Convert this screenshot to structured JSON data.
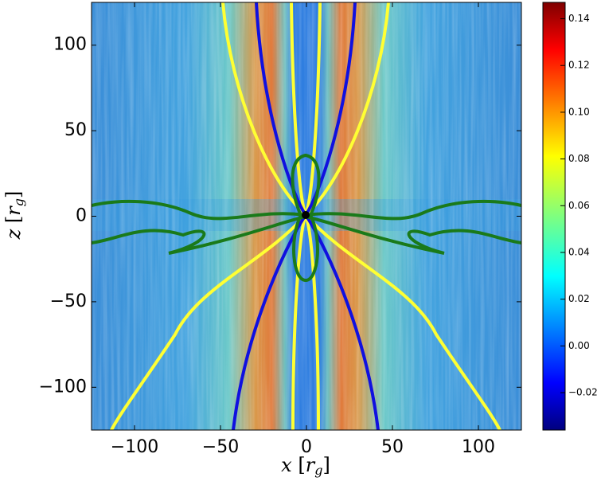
{
  "chart_data": {
    "type": "image",
    "xlabel": {
      "var": "x",
      "unit": "r",
      "sub": "g"
    },
    "ylabel": {
      "var": "z",
      "unit": "r",
      "sub": "g"
    },
    "xlim": [
      -125,
      125
    ],
    "ylim": [
      -125,
      125
    ],
    "xticks": [
      {
        "value": -100,
        "label": "−100"
      },
      {
        "value": -50,
        "label": "−50"
      },
      0,
      50,
      100
    ],
    "yticks": [
      {
        "value": -100,
        "label": "−100"
      },
      {
        "value": -50,
        "label": "−50"
      },
      0,
      50,
      100
    ],
    "colorbar": {
      "lim": [
        -0.036,
        0.147
      ],
      "ticks": [
        {
          "value": -0.02,
          "label": "−0.02"
        },
        {
          "value": 0,
          "label": "0.00"
        },
        {
          "value": 0.02,
          "label": "0.02"
        },
        {
          "value": 0.04,
          "label": "0.04"
        },
        {
          "value": 0.06,
          "label": "0.06"
        },
        {
          "value": 0.08,
          "label": "0.08"
        },
        {
          "value": 0.1,
          "label": "0.10"
        },
        {
          "value": 0.12,
          "label": "0.12"
        },
        {
          "value": 0.14,
          "label": "0.14"
        }
      ],
      "colormap": "jet"
    }
  }
}
